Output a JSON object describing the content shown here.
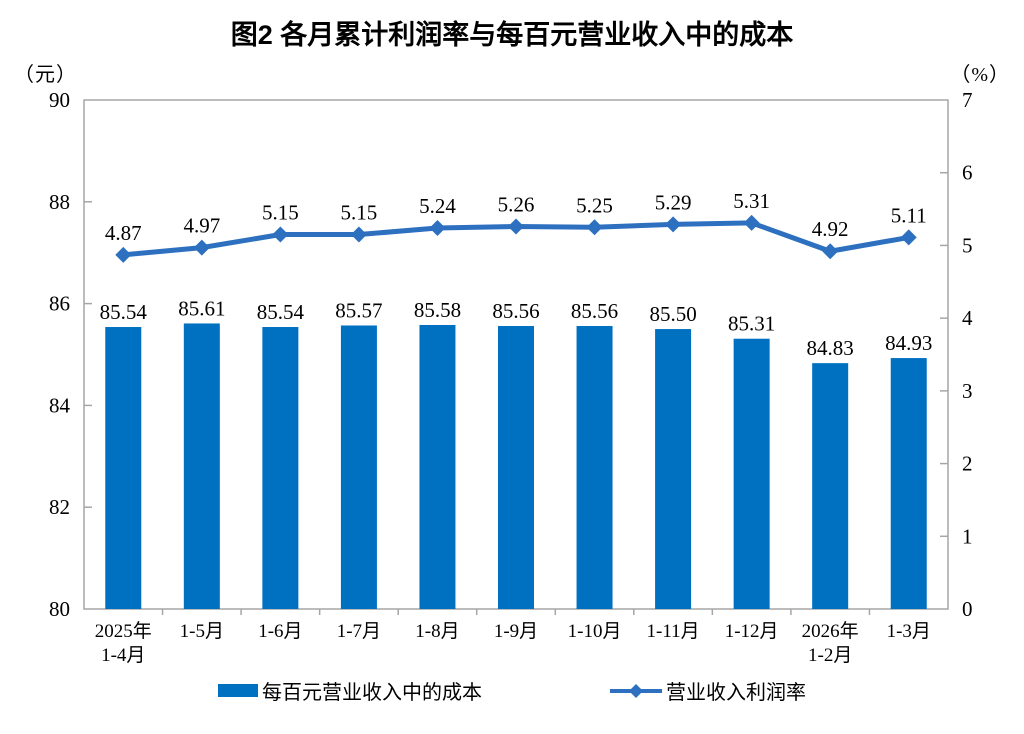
{
  "chart_data": {
    "type": "bar+line",
    "title": "图2 各月累计利润率与每百元营业收入中的成本",
    "categories": [
      [
        "2025年",
        "1-4月"
      ],
      [
        "1-5月"
      ],
      [
        "1-6月"
      ],
      [
        "1-7月"
      ],
      [
        "1-8月"
      ],
      [
        "1-9月"
      ],
      [
        "1-10月"
      ],
      [
        "1-11月"
      ],
      [
        "1-12月"
      ],
      [
        "2026年",
        "1-2月"
      ],
      [
        "1-3月"
      ]
    ],
    "series": [
      {
        "name": "每百元营业收入中的成本",
        "type": "bar",
        "axis": "left",
        "color": "#0070C0",
        "values": [
          85.54,
          85.61,
          85.54,
          85.57,
          85.58,
          85.56,
          85.56,
          85.5,
          85.31,
          84.83,
          84.93
        ]
      },
      {
        "name": "营业收入利润率",
        "type": "line",
        "axis": "right",
        "color": "#2E70C0",
        "values": [
          4.87,
          4.97,
          5.15,
          5.15,
          5.24,
          5.26,
          5.25,
          5.29,
          5.31,
          4.92,
          5.11
        ]
      }
    ],
    "left_axis": {
      "unit": "（元）",
      "min": 80,
      "max": 90,
      "step": 2,
      "ticks": [
        90,
        88,
        86,
        84,
        82,
        80
      ]
    },
    "right_axis": {
      "unit": "（%）",
      "min": 0,
      "max": 7,
      "step": 1,
      "ticks": [
        7,
        6,
        5,
        4,
        3,
        2,
        1,
        0
      ]
    },
    "legend_position": "bottom",
    "grid": false,
    "frame_color": "#A6A6A6",
    "text_color": "#000000"
  }
}
